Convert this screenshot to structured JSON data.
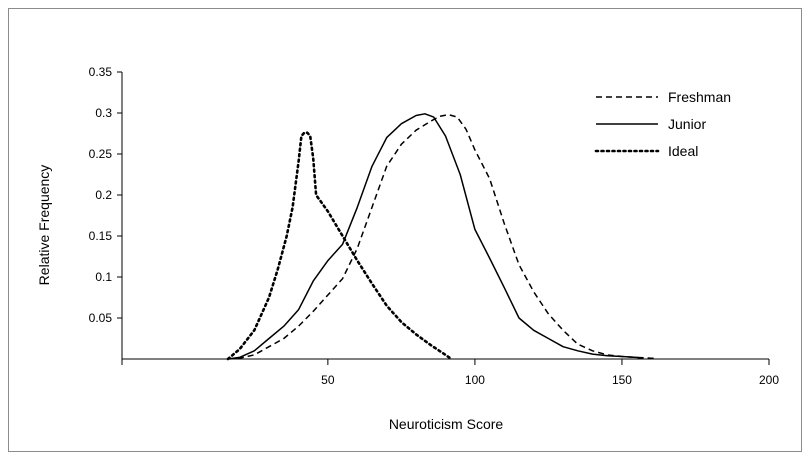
{
  "chart_data": {
    "type": "line",
    "title": "",
    "xlabel": "Neuroticism Score",
    "ylabel": "Relative Frequency",
    "xlim": [
      -20,
      200
    ],
    "ylim": [
      0,
      0.35
    ],
    "x_ticks": [
      50,
      100,
      150,
      200
    ],
    "x_tick_labels": [
      "50",
      "100",
      "150",
      "200"
    ],
    "y_ticks": [
      0.05,
      0.1,
      0.15,
      0.2,
      0.25,
      0.3,
      0.35
    ],
    "y_tick_labels": [
      "0.05",
      "0.1",
      "0.15",
      "0.2",
      "0.25",
      "0.3",
      "0.35"
    ],
    "grid": false,
    "legend_position": "top-right",
    "series": [
      {
        "name": "Freshman",
        "style": "dashed",
        "color": "#000000",
        "x": [
          16,
          20,
          25,
          30,
          35,
          40,
          45,
          50,
          55,
          60,
          65,
          70,
          75,
          80,
          85,
          88,
          91,
          94,
          97,
          100,
          105,
          110,
          115,
          120,
          125,
          130,
          135,
          140,
          145,
          150,
          155,
          160,
          162
        ],
        "y": [
          0,
          0.001,
          0.005,
          0.015,
          0.025,
          0.04,
          0.058,
          0.078,
          0.098,
          0.135,
          0.185,
          0.235,
          0.262,
          0.279,
          0.29,
          0.296,
          0.298,
          0.295,
          0.28,
          0.255,
          0.22,
          0.165,
          0.115,
          0.082,
          0.055,
          0.035,
          0.018,
          0.01,
          0.005,
          0.003,
          0.002,
          0.001,
          0.001
        ]
      },
      {
        "name": "Junior",
        "style": "solid",
        "color": "#000000",
        "x": [
          16,
          20,
          25,
          30,
          35,
          40,
          45,
          50,
          55,
          60,
          65,
          70,
          75,
          80,
          83,
          86,
          90,
          95,
          100,
          105,
          110,
          115,
          120,
          125,
          130,
          135,
          140,
          145,
          150,
          155,
          157
        ],
        "y": [
          0,
          0.002,
          0.01,
          0.025,
          0.04,
          0.06,
          0.095,
          0.12,
          0.14,
          0.185,
          0.235,
          0.27,
          0.287,
          0.297,
          0.299,
          0.295,
          0.272,
          0.225,
          0.158,
          0.123,
          0.087,
          0.05,
          0.035,
          0.025,
          0.015,
          0.01,
          0.006,
          0.004,
          0.003,
          0.002,
          0.001
        ]
      },
      {
        "name": "Ideal",
        "style": "dotted",
        "color": "#000000",
        "x": [
          16,
          20,
          25,
          30,
          33,
          36,
          38,
          40,
          41,
          42,
          43,
          44,
          45,
          46,
          50,
          55,
          60,
          65,
          70,
          75,
          80,
          85,
          90,
          92
        ],
        "y": [
          0,
          0.012,
          0.035,
          0.075,
          0.11,
          0.15,
          0.185,
          0.24,
          0.272,
          0.276,
          0.276,
          0.272,
          0.245,
          0.2,
          0.18,
          0.15,
          0.12,
          0.092,
          0.065,
          0.045,
          0.03,
          0.017,
          0.005,
          0
        ]
      }
    ]
  }
}
